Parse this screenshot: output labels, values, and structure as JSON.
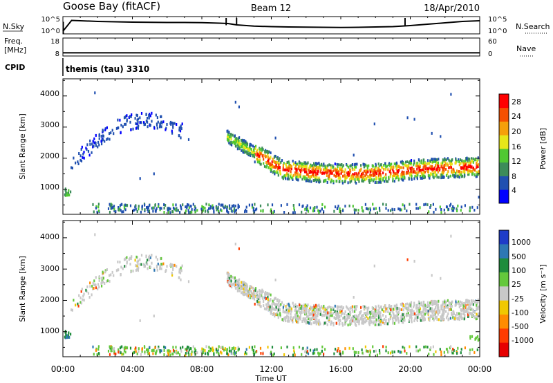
{
  "header": {
    "station": "Goose Bay (fitACF)",
    "beam": "Beam 12",
    "date": "18/Apr/2010"
  },
  "chart_data": [
    {
      "type": "line",
      "name": "nsky-nsearch",
      "ylabel_left": "N.Sky",
      "ylabel_right": "N.Search",
      "left_ticks": [
        "10^5",
        "10^0"
      ],
      "right_ticks": [
        "10^5",
        "10^0"
      ],
      "x_hours": [
        0,
        0.5,
        1,
        2,
        3,
        4,
        5,
        6,
        7,
        8,
        9,
        9.5,
        10,
        11,
        12,
        13,
        14,
        15,
        16,
        17,
        18,
        19,
        20,
        21,
        22,
        23,
        24
      ],
      "y_fraction": [
        0.15,
        0.78,
        0.76,
        0.72,
        0.7,
        0.68,
        0.67,
        0.66,
        0.66,
        0.65,
        0.62,
        0.6,
        0.52,
        0.45,
        0.42,
        0.4,
        0.39,
        0.38,
        0.37,
        0.38,
        0.4,
        0.42,
        0.48,
        0.56,
        0.64,
        0.72,
        0.76
      ],
      "spikes_hours": [
        9.4,
        10.0,
        19.7
      ]
    },
    {
      "type": "line",
      "name": "freq-nave",
      "ylabel_left_1": "Freq.",
      "ylabel_left_2": "[MHz]",
      "ylabel_right": "Nave",
      "left_ticks": [
        "18",
        "8"
      ],
      "right_ticks": [
        "60",
        "0"
      ],
      "freq_value_fraction": 0.1
    },
    {
      "type": "table",
      "name": "cpid",
      "label": "CPID",
      "program": "themis (tau) 3310"
    },
    {
      "type": "heatmap",
      "name": "power",
      "ylabel": "Slant Range [km]",
      "yticks": [
        "1000",
        "2000",
        "3000",
        "4000"
      ],
      "ylim": [
        200,
        4550
      ],
      "colorbar_label": "Power [dB]",
      "colorbar_ticks": [
        "4",
        "8",
        "12",
        "16",
        "20",
        "24",
        "28"
      ],
      "colorbar_colors": [
        "#0000ff",
        "#2050b0",
        "#3c8c5a",
        "#50c832",
        "#e6e619",
        "#f5a00a",
        "#f55000",
        "#ff0000"
      ]
    },
    {
      "type": "heatmap",
      "name": "velocity",
      "ylabel": "Slant Range [km]",
      "yticks": [
        "1000",
        "2000",
        "3000",
        "4000"
      ],
      "ylim": [
        200,
        4550
      ],
      "xticks": [
        "00:00",
        "04:00",
        "08:00",
        "12:00",
        "16:00",
        "20:00",
        "00:00"
      ],
      "xlabel": "Time UT",
      "colorbar_label": "Velocity [m s⁻¹]",
      "colorbar_ticks": [
        "1000",
        "500",
        "100",
        "25",
        "-25",
        "-100",
        "-500",
        "-1000"
      ],
      "colorbar_colors": [
        "#1e3cc8",
        "#2e78b4",
        "#1e8c3c",
        "#64c83c",
        "#c8c8c8",
        "#f0c800",
        "#ff8c00",
        "#ff3c00",
        "#e60000"
      ]
    }
  ]
}
